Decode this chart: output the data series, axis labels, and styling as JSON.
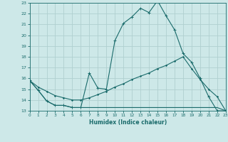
{
  "xlabel": "Humidex (Indice chaleur)",
  "background_color": "#cde8e8",
  "grid_color": "#b0d0d0",
  "line_color": "#1a6b6b",
  "ylim": [
    13,
    23
  ],
  "xlim": [
    0,
    23
  ],
  "yticks": [
    13,
    14,
    15,
    16,
    17,
    18,
    19,
    20,
    21,
    22,
    23
  ],
  "xticks": [
    0,
    1,
    2,
    3,
    4,
    5,
    6,
    7,
    8,
    9,
    10,
    11,
    12,
    13,
    14,
    15,
    16,
    17,
    18,
    19,
    20,
    21,
    22,
    23
  ],
  "curve1_x": [
    0,
    1,
    2,
    3,
    4,
    5,
    6,
    7,
    8,
    9,
    10,
    11,
    12,
    13,
    14,
    15,
    16,
    17,
    18,
    19,
    20,
    21,
    22,
    23
  ],
  "curve1_y": [
    15.8,
    14.9,
    13.9,
    13.5,
    13.5,
    13.3,
    13.3,
    16.5,
    15.1,
    15.0,
    19.5,
    21.1,
    21.7,
    22.5,
    22.1,
    23.2,
    21.8,
    20.5,
    18.3,
    17.5,
    16.0,
    14.3,
    13.0,
    13.0
  ],
  "curve2_x": [
    0,
    1,
    2,
    3,
    4,
    5,
    6,
    7,
    8,
    9,
    10,
    11,
    12,
    13,
    14,
    15,
    16,
    17,
    18,
    19,
    20,
    21,
    22,
    23
  ],
  "curve2_y": [
    15.8,
    15.2,
    14.8,
    14.4,
    14.2,
    14.0,
    14.0,
    14.2,
    14.5,
    14.8,
    15.2,
    15.5,
    15.9,
    16.2,
    16.5,
    16.9,
    17.2,
    17.6,
    18.0,
    16.9,
    15.9,
    15.0,
    14.3,
    13.0
  ],
  "curve3_x": [
    0,
    1,
    2,
    3,
    4,
    5,
    6,
    7,
    8,
    9,
    10,
    11,
    12,
    13,
    14,
    15,
    16,
    17,
    18,
    19,
    20,
    21,
    22,
    23
  ],
  "curve3_y": [
    15.8,
    14.9,
    13.9,
    13.5,
    13.5,
    13.3,
    13.3,
    13.3,
    13.3,
    13.3,
    13.3,
    13.3,
    13.3,
    13.3,
    13.3,
    13.3,
    13.3,
    13.3,
    13.3,
    13.3,
    13.3,
    13.3,
    13.3,
    13.0
  ]
}
